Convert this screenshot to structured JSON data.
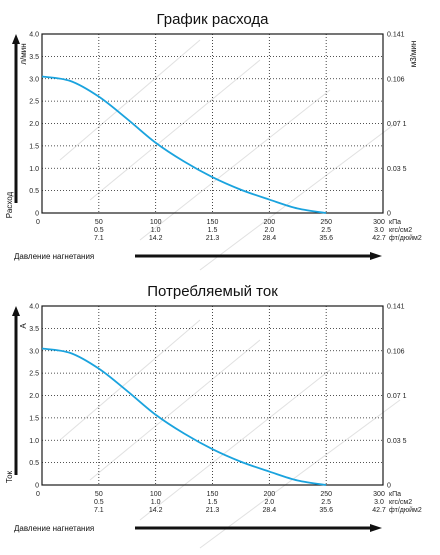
{
  "chart_data": [
    {
      "type": "line",
      "title": "График расхода",
      "ylabel": "л/мин",
      "ylabel_side": "Расход",
      "y2label": "м3/мин",
      "xlabel": "Давление нагнетания",
      "ylim": [
        0,
        4
      ],
      "y_ticks": [
        "0",
        "0.5",
        "1.0",
        "1.5",
        "2.0",
        "2.5",
        "3.0",
        "3.5",
        "4.0"
      ],
      "y2_ticks": [
        "0",
        "0.03 5",
        "0.07 1",
        "0.106",
        "0.141"
      ],
      "x_ticks": [
        {
          "kpa": "50",
          "kgf": "0.5",
          "psi": "7.1"
        },
        {
          "kpa": "100",
          "kgf": "1.0",
          "psi": "14.2"
        },
        {
          "kpa": "150",
          "kgf": "1.5",
          "psi": "21.3"
        },
        {
          "kpa": "200",
          "kgf": "2.0",
          "psi": "28.4"
        },
        {
          "kpa": "250",
          "kgf": "2.5",
          "psi": "35.6"
        }
      ],
      "x_end": {
        "kpa": "300",
        "kgf": "3.0",
        "psi": "42.7"
      },
      "unit_labels": {
        "kpa": "кПа",
        "kgf": "кгс/см2",
        "psi": "фт/дюйм2"
      },
      "x_zero_label": "0",
      "xlim": [
        0,
        300
      ],
      "series": [
        {
          "color": "#1aa3de",
          "x": [
            0,
            25,
            50,
            75,
            100,
            125,
            150,
            175,
            200,
            225,
            250
          ],
          "y": [
            3.05,
            2.95,
            2.6,
            2.1,
            1.57,
            1.15,
            0.8,
            0.52,
            0.3,
            0.1,
            0.0
          ]
        }
      ]
    },
    {
      "type": "line",
      "title": "Потребляемый ток",
      "ylabel": "A",
      "ylabel_side": "Ток",
      "y2label": "",
      "xlabel": "Давление нагнетания",
      "ylim": [
        0,
        4
      ],
      "y_ticks": [
        "0",
        "0.5",
        "1.0",
        "1.5",
        "2.0",
        "2.5",
        "3.0",
        "3.5",
        "4.0"
      ],
      "y2_ticks": [
        "0",
        "0.03 5",
        "0.07 1",
        "0.106",
        "0.141"
      ],
      "x_ticks": [
        {
          "kpa": "50",
          "kgf": "0.5",
          "psi": "7.1"
        },
        {
          "kpa": "100",
          "kgf": "1.0",
          "psi": "14.2"
        },
        {
          "kpa": "150",
          "kgf": "1.5",
          "psi": "21.3"
        },
        {
          "kpa": "200",
          "kgf": "2.0",
          "psi": "28.4"
        },
        {
          "kpa": "250",
          "kgf": "2.5",
          "psi": "35.6"
        }
      ],
      "x_end": {
        "kpa": "300",
        "kgf": "3.0",
        "psi": "42.7"
      },
      "unit_labels": {
        "kpa": "кПа",
        "kgf": "кгс/см2",
        "psi": "фт/дюйм2"
      },
      "x_zero_label": "0",
      "xlim": [
        0,
        300
      ],
      "series": [
        {
          "color": "#1aa3de",
          "x": [
            0,
            25,
            50,
            75,
            100,
            125,
            150,
            175,
            200,
            225,
            250
          ],
          "y": [
            3.05,
            2.95,
            2.6,
            2.1,
            1.57,
            1.15,
            0.8,
            0.52,
            0.3,
            0.1,
            0.0
          ]
        }
      ]
    }
  ]
}
